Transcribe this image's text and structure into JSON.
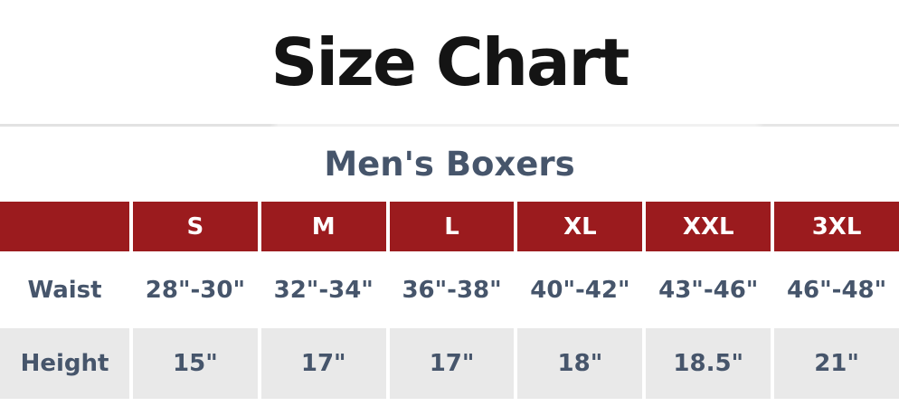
{
  "page": {
    "title": "Size Chart",
    "subtitle": "Men's Boxers"
  },
  "chart_data": {
    "type": "table",
    "title": "Size Chart",
    "subtitle": "Men's Boxers",
    "columns": [
      "",
      "S",
      "M",
      "L",
      "XL",
      "XXL",
      "3XL"
    ],
    "rows": [
      {
        "label": "Waist",
        "values": [
          "28\"-30\"",
          "32\"-34\"",
          "36\"-38\"",
          "40\"-42\"",
          "43\"-46\"",
          "46\"-48\""
        ]
      },
      {
        "label": "Height",
        "values": [
          "15\"",
          "17\"",
          "17\"",
          "18\"",
          "18.5\"",
          "21\""
        ]
      }
    ],
    "colors": {
      "header_bg": "#9B1B1E",
      "header_text": "#FFFFFF",
      "body_text": "#46556B",
      "alt_row_bg": "#E9E9E9",
      "title_text": "#141414"
    },
    "layout_hints": {
      "first_column_blank": true,
      "alt_row": "Height",
      "column_separator": "white 4px gaps in header and gray rows"
    }
  }
}
